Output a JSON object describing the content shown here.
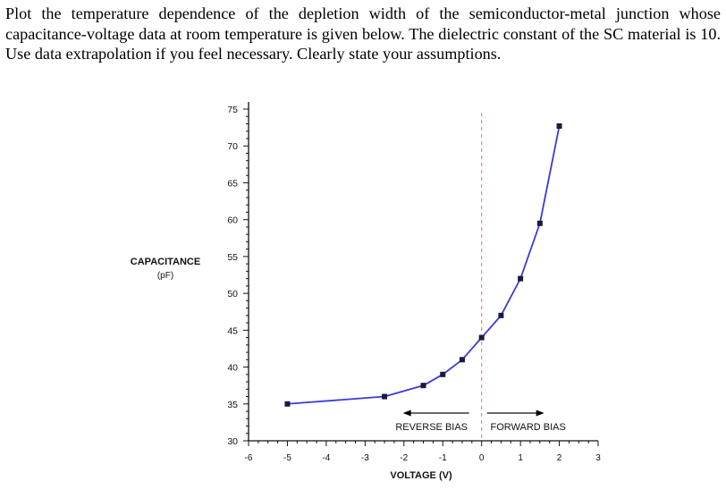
{
  "problem": {
    "text": "Plot the temperature dependence of the depletion width of the semiconductor-metal junction whose capacitance-voltage data at room temperature is given below. The dielectric constant of the SC material is 10. Use data extrapolation if you feel necessary. Clearly state your assumptions."
  },
  "chart_data": {
    "type": "line",
    "title": "",
    "xlabel": "VOLTAGE (V)",
    "ylabel": "CAPACITANCE",
    "ylabel_unit": "(pF)",
    "xlim": [
      -6,
      3
    ],
    "ylim": [
      30,
      75
    ],
    "x_ticks": [
      -6,
      -5,
      -4,
      -3,
      -2,
      -1,
      0,
      1,
      2,
      3
    ],
    "x_tick_labels": [
      "-6",
      "-5",
      "-4",
      "-3",
      "-2",
      "-1",
      "0",
      "1",
      "2",
      "3"
    ],
    "y_ticks": [
      30,
      35,
      40,
      45,
      50,
      55,
      60,
      65,
      70,
      75
    ],
    "grid": false,
    "line_color": "#3a3ad8",
    "marker_color": "#1a1a3a",
    "divider_color": "#e08a8a",
    "series": [
      {
        "x": [
          -5,
          -2.5,
          -1.5,
          -1,
          -0.5,
          0,
          0.5,
          1,
          1.5,
          2
        ],
        "y": [
          35,
          36,
          37.5,
          39,
          41,
          44,
          47,
          52,
          59.5,
          72.7
        ]
      }
    ],
    "annotations": {
      "reverse": "REVERSE BIAS",
      "forward": "FORWARD BIAS"
    }
  }
}
